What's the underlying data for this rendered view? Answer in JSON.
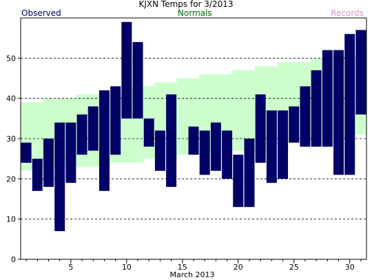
{
  "colors": {
    "observed": "#000066",
    "normals_band": "#ccffcc",
    "normals_text": "#006600",
    "records_text": "#cc99cc",
    "title_text": "#000000",
    "grid": "#000000"
  },
  "chart_data": {
    "type": "bar",
    "title": "KJXN Temps for  3/2013",
    "xlabel": "March 2013",
    "ylabel": "",
    "legend": {
      "observed": "Observed",
      "normals": "Normals",
      "records": "Records"
    },
    "xlim": [
      1,
      31
    ],
    "ylim": [
      0,
      60
    ],
    "x_ticks": [
      5,
      10,
      15,
      20,
      25,
      30
    ],
    "y_ticks": [
      0,
      10,
      20,
      30,
      40,
      50
    ],
    "grid": "horizontal dashed at 10,20,30,40,50",
    "days": [
      1,
      2,
      3,
      4,
      5,
      6,
      7,
      8,
      9,
      10,
      11,
      12,
      13,
      14,
      15,
      16,
      17,
      18,
      19,
      20,
      21,
      22,
      23,
      24,
      25,
      26,
      27,
      28,
      29,
      30,
      31
    ],
    "observed": {
      "high": [
        29,
        25,
        30,
        34,
        34,
        36,
        38,
        42,
        43,
        59,
        54,
        35,
        32,
        41,
        null,
        33,
        32,
        34,
        32,
        26,
        30,
        41,
        37,
        37,
        38,
        43,
        47,
        52,
        52,
        56,
        57
      ],
      "low": [
        24,
        17,
        18,
        7,
        19,
        26,
        27,
        17,
        26,
        35,
        35,
        28,
        22,
        18,
        null,
        26,
        21,
        22,
        20,
        13,
        13,
        24,
        19,
        20,
        29,
        28,
        28,
        28,
        21,
        21,
        36
      ]
    },
    "normals": {
      "high": [
        39,
        39,
        40,
        40,
        40,
        41,
        41,
        41,
        42,
        42,
        43,
        43,
        44,
        44,
        45,
        45,
        46,
        46,
        46,
        47,
        47,
        48,
        48,
        49,
        49,
        49,
        50,
        50,
        51,
        51,
        51
      ],
      "low": [
        22,
        22,
        23,
        23,
        23,
        23,
        23,
        23,
        24,
        24,
        24,
        25,
        25,
        25,
        26,
        26,
        26,
        26,
        27,
        27,
        27,
        27,
        28,
        28,
        29,
        29,
        29,
        29,
        30,
        30,
        31
      ]
    }
  }
}
